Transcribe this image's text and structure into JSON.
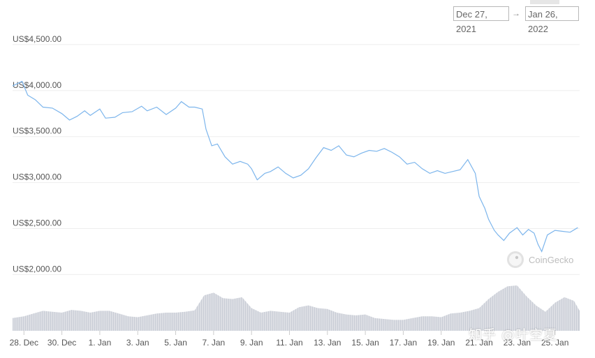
{
  "date_range": {
    "from": "Dec 27, 2021",
    "arrow": "→",
    "to": "Jan 26, 2022"
  },
  "watermark_logo": "CoinGecko",
  "watermark_text": "知乎 @叶空夏",
  "colors": {
    "line": "#7cb5ec",
    "volume": "#c9cdd6",
    "grid": "#eeeeee",
    "axis_text": "#555555"
  },
  "chart_data": {
    "type": "line",
    "y_ticks": [
      "US$4,500.00",
      "US$4,000.00",
      "US$3,500.00",
      "US$3,000.00",
      "US$2,500.00",
      "US$2,000.00"
    ],
    "y_tick_values": [
      4500,
      4000,
      3500,
      3000,
      2500,
      2000
    ],
    "ylim": [
      1950,
      4560
    ],
    "x_ticks": [
      "28. Dec",
      "30. Dec",
      "1. Jan",
      "3. Jan",
      "5. Jan",
      "7. Jan",
      "9. Jan",
      "11. Jan",
      "13. Jan",
      "15. Jan",
      "17. Jan",
      "19. Jan",
      "21. Jan",
      "23. Jan",
      "25. Jan"
    ],
    "x_tick_days": [
      1,
      3,
      5,
      7,
      9,
      11,
      13,
      15,
      17,
      19,
      21,
      23,
      25,
      27,
      29
    ],
    "xlim": [
      0.4,
      30.3
    ],
    "series": [
      {
        "x": [
          0.4,
          0.9,
          1.2,
          1.6,
          2.0,
          2.5,
          3.0,
          3.4,
          3.8,
          4.2,
          4.5,
          5.0,
          5.3,
          5.8,
          6.2,
          6.7,
          7.2,
          7.5,
          8.0,
          8.5,
          9.0,
          9.3,
          9.7,
          10.0,
          10.4,
          10.6,
          10.9,
          11.2,
          11.6,
          12.0,
          12.4,
          12.8,
          13.0,
          13.3,
          13.7,
          14.0,
          14.4,
          14.8,
          15.2,
          15.6,
          16.0,
          16.4,
          16.8,
          17.2,
          17.6,
          18.0,
          18.4,
          18.8,
          19.2,
          19.6,
          20.0,
          20.4,
          20.8,
          21.2,
          21.6,
          22.0,
          22.4,
          22.8,
          23.2,
          23.6,
          24.0,
          24.4,
          24.8,
          25.0,
          25.3,
          25.5,
          25.8,
          26.0,
          26.3,
          26.6,
          27.0,
          27.3,
          27.6,
          27.9,
          28.1,
          28.3,
          28.6,
          29.0,
          29.4,
          29.8,
          30.2
        ],
        "y": [
          4050,
          4100,
          3950,
          3900,
          3820,
          3810,
          3750,
          3680,
          3720,
          3780,
          3730,
          3800,
          3700,
          3710,
          3760,
          3770,
          3830,
          3780,
          3820,
          3740,
          3810,
          3880,
          3820,
          3820,
          3800,
          3580,
          3400,
          3420,
          3280,
          3200,
          3230,
          3200,
          3150,
          3030,
          3100,
          3120,
          3170,
          3100,
          3050,
          3080,
          3150,
          3270,
          3380,
          3350,
          3400,
          3300,
          3280,
          3320,
          3350,
          3340,
          3370,
          3330,
          3280,
          3200,
          3220,
          3150,
          3100,
          3130,
          3100,
          3120,
          3140,
          3250,
          3100,
          2850,
          2720,
          2600,
          2480,
          2430,
          2370,
          2450,
          2510,
          2430,
          2490,
          2450,
          2330,
          2250,
          2430,
          2480,
          2470,
          2460,
          2510
        ]
      },
      {
        "name": "volume",
        "x": [
          0.4,
          1.0,
          1.5,
          2.0,
          2.5,
          3.0,
          3.5,
          4.0,
          4.5,
          5.0,
          5.5,
          6.0,
          6.5,
          7.0,
          7.5,
          8.0,
          8.5,
          9.0,
          9.5,
          10.0,
          10.5,
          11.0,
          11.5,
          12.0,
          12.5,
          13.0,
          13.5,
          14.0,
          14.5,
          15.0,
          15.5,
          16.0,
          16.5,
          17.0,
          17.5,
          18.0,
          18.5,
          19.0,
          19.5,
          20.0,
          20.5,
          21.0,
          21.5,
          22.0,
          22.5,
          23.0,
          23.5,
          24.0,
          24.5,
          25.0,
          25.5,
          26.0,
          26.5,
          27.0,
          27.5,
          28.0,
          28.5,
          29.0,
          29.5,
          30.0,
          30.3
        ],
        "values": [
          0.28,
          0.32,
          0.38,
          0.44,
          0.42,
          0.4,
          0.46,
          0.44,
          0.4,
          0.44,
          0.44,
          0.38,
          0.32,
          0.3,
          0.34,
          0.38,
          0.4,
          0.4,
          0.42,
          0.45,
          0.78,
          0.84,
          0.72,
          0.7,
          0.74,
          0.5,
          0.4,
          0.44,
          0.42,
          0.4,
          0.52,
          0.56,
          0.5,
          0.48,
          0.4,
          0.36,
          0.34,
          0.36,
          0.28,
          0.26,
          0.24,
          0.24,
          0.28,
          0.32,
          0.32,
          0.3,
          0.38,
          0.4,
          0.44,
          0.5,
          0.7,
          0.86,
          0.98,
          1.0,
          0.76,
          0.56,
          0.42,
          0.62,
          0.74,
          0.66,
          0.44
        ]
      }
    ]
  }
}
